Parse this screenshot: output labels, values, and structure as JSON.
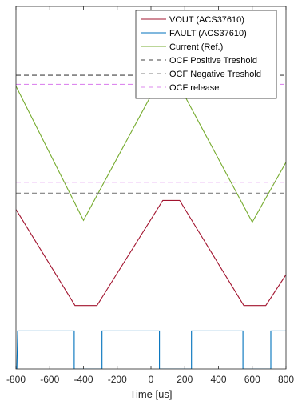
{
  "chart_data": {
    "type": "line",
    "xlabel": "Time [us]",
    "xlim": [
      -800,
      800
    ],
    "x_ticks": [
      -800,
      -600,
      -400,
      -200,
      0,
      200,
      400,
      600,
      800
    ],
    "x_tick_labels": [
      "-800",
      "-600",
      "-400",
      "-200",
      "0",
      "200",
      "400",
      "600",
      "800"
    ],
    "ylim": [
      0,
      100
    ],
    "y_ticks_visible": false,
    "grid": false,
    "legend_position": "top-right",
    "series": [
      {
        "name": "VOUT (ACS37610)",
        "color": "#a2142f",
        "style": "solid",
        "x": [
          -800,
          -450,
          -320,
          70,
          170,
          550,
          680,
          800
        ],
        "y": [
          44,
          17.5,
          17.5,
          46.5,
          46.5,
          17.5,
          17.5,
          26
        ]
      },
      {
        "name": "FAULT (ACS37610)",
        "color": "#0072bd",
        "style": "solid",
        "x": [
          -795,
          -790,
          -455,
          -455,
          -290,
          -290,
          50,
          50,
          240,
          240,
          545,
          545,
          710,
          710,
          800
        ],
        "y": [
          0,
          10.5,
          10.5,
          0,
          0,
          10.5,
          10.5,
          0,
          0,
          10.5,
          10.5,
          0,
          0,
          10.5,
          10.5
        ]
      },
      {
        "name": "Current (Ref.)",
        "color": "#77ac30",
        "style": "solid",
        "x": [
          -800,
          -400,
          100,
          600,
          800
        ],
        "y": [
          78,
          41,
          84,
          40.5,
          57
        ]
      },
      {
        "name": "OCF Positive Treshold",
        "color": "#404040",
        "style": "dashed",
        "x": [
          -800,
          800
        ],
        "y": [
          81,
          81
        ]
      },
      {
        "name": "OCF Negative Treshold",
        "color": "#808080",
        "style": "dashed",
        "x": [
          -800,
          800
        ],
        "y": [
          48.5,
          48.5
        ]
      },
      {
        "name": "OCF release",
        "color": "#dd88ee",
        "style": "dashed",
        "x": [
          -800,
          800
        ],
        "y": [
          78.5,
          78.5
        ]
      },
      {
        "name": "",
        "color": "#dd88ee",
        "style": "dashed",
        "x": [
          -800,
          800
        ],
        "y": [
          51.5,
          51.5
        ]
      }
    ]
  }
}
